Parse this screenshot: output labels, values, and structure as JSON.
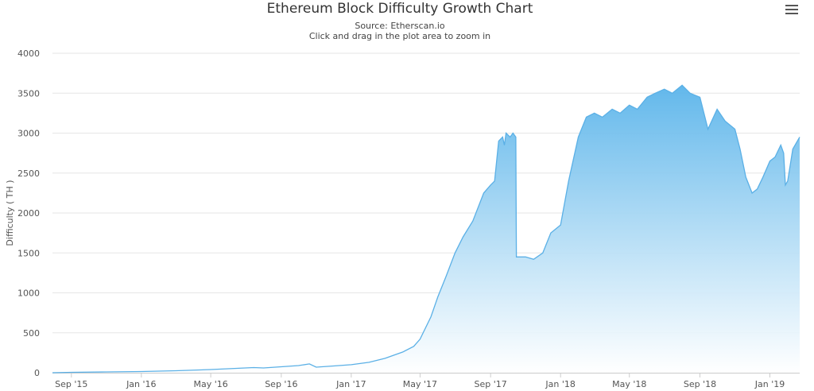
{
  "header": {
    "title": "Ethereum Block Difficulty Growth Chart",
    "subtitle": "Source: Etherscan.io",
    "hint": "Click and drag in the plot area to zoom in",
    "menu_icon": "hamburger-menu-icon"
  },
  "colors": {
    "line": "#5bb0e6",
    "fill_top": "#5ab4ea",
    "fill_bottom": "#ffffff",
    "grid": "#e6e6e6",
    "axis_label": "#555555"
  },
  "chart_data": {
    "type": "area",
    "title": "Ethereum Block Difficulty Growth Chart",
    "subtitle": "Source: Etherscan.io",
    "xlabel": "",
    "ylabel": "Difficulty ( TH )",
    "ylim": [
      0,
      4000
    ],
    "xlim": [
      "2015-07-30",
      "2019-02-22"
    ],
    "y_ticks": [
      0,
      500,
      1000,
      1500,
      2000,
      2500,
      3000,
      3500,
      4000
    ],
    "x_ticks": [
      {
        "label": "Sep '15",
        "date": "2015-09-01"
      },
      {
        "label": "Jan '16",
        "date": "2016-01-01"
      },
      {
        "label": "May '16",
        "date": "2016-05-01"
      },
      {
        "label": "Sep '16",
        "date": "2016-09-01"
      },
      {
        "label": "Jan '17",
        "date": "2017-01-01"
      },
      {
        "label": "May '17",
        "date": "2017-05-01"
      },
      {
        "label": "Sep '17",
        "date": "2017-09-01"
      },
      {
        "label": "Jan '18",
        "date": "2018-01-01"
      },
      {
        "label": "May '18",
        "date": "2018-05-01"
      },
      {
        "label": "Sep '18",
        "date": "2018-09-01"
      },
      {
        "label": "Jan '19",
        "date": "2019-01-01"
      }
    ],
    "grid": true,
    "legend": "none",
    "series": [
      {
        "x": [
          "2015-07-30",
          "2015-09-01",
          "2015-11-01",
          "2016-01-01",
          "2016-03-01",
          "2016-05-01",
          "2016-06-15",
          "2016-07-15",
          "2016-08-01",
          "2016-09-01",
          "2016-10-01",
          "2016-10-20",
          "2016-11-01",
          "2016-12-01",
          "2017-01-01",
          "2017-02-01",
          "2017-03-01",
          "2017-04-01",
          "2017-04-20",
          "2017-05-01",
          "2017-05-20",
          "2017-06-01",
          "2017-06-15",
          "2017-07-01",
          "2017-07-15",
          "2017-08-01",
          "2017-08-20",
          "2017-09-01",
          "2017-09-08",
          "2017-09-15",
          "2017-09-22",
          "2017-09-25",
          "2017-09-28",
          "2017-10-05",
          "2017-10-10",
          "2017-10-15",
          "2017-10-16",
          "2017-10-17",
          "2017-11-01",
          "2017-11-15",
          "2017-12-01",
          "2017-12-15",
          "2018-01-01",
          "2018-01-15",
          "2018-02-01",
          "2018-02-15",
          "2018-03-01",
          "2018-03-15",
          "2018-04-01",
          "2018-04-15",
          "2018-05-01",
          "2018-05-15",
          "2018-06-01",
          "2018-06-15",
          "2018-07-01",
          "2018-07-15",
          "2018-08-01",
          "2018-08-15",
          "2018-09-01",
          "2018-09-15",
          "2018-10-01",
          "2018-10-15",
          "2018-11-01",
          "2018-11-10",
          "2018-11-20",
          "2018-12-01",
          "2018-12-10",
          "2018-12-20",
          "2019-01-01",
          "2019-01-10",
          "2019-01-20",
          "2019-01-25",
          "2019-01-28",
          "2019-02-01",
          "2019-02-10",
          "2019-02-22"
        ],
        "values": [
          0,
          5,
          10,
          15,
          25,
          40,
          55,
          65,
          60,
          75,
          90,
          110,
          70,
          85,
          100,
          130,
          180,
          260,
          330,
          420,
          700,
          950,
          1200,
          1500,
          1700,
          1900,
          2250,
          2350,
          2400,
          2900,
          2950,
          2850,
          3000,
          2950,
          3000,
          2950,
          1450,
          1450,
          1450,
          1420,
          1500,
          1750,
          1850,
          2400,
          2950,
          3200,
          3250,
          3200,
          3300,
          3250,
          3350,
          3300,
          3450,
          3500,
          3550,
          3500,
          3600,
          3500,
          3450,
          3050,
          3300,
          3150,
          3050,
          2800,
          2450,
          2250,
          2300,
          2450,
          2650,
          2700,
          2850,
          2750,
          2350,
          2400,
          2800,
          2950
        ]
      }
    ]
  }
}
